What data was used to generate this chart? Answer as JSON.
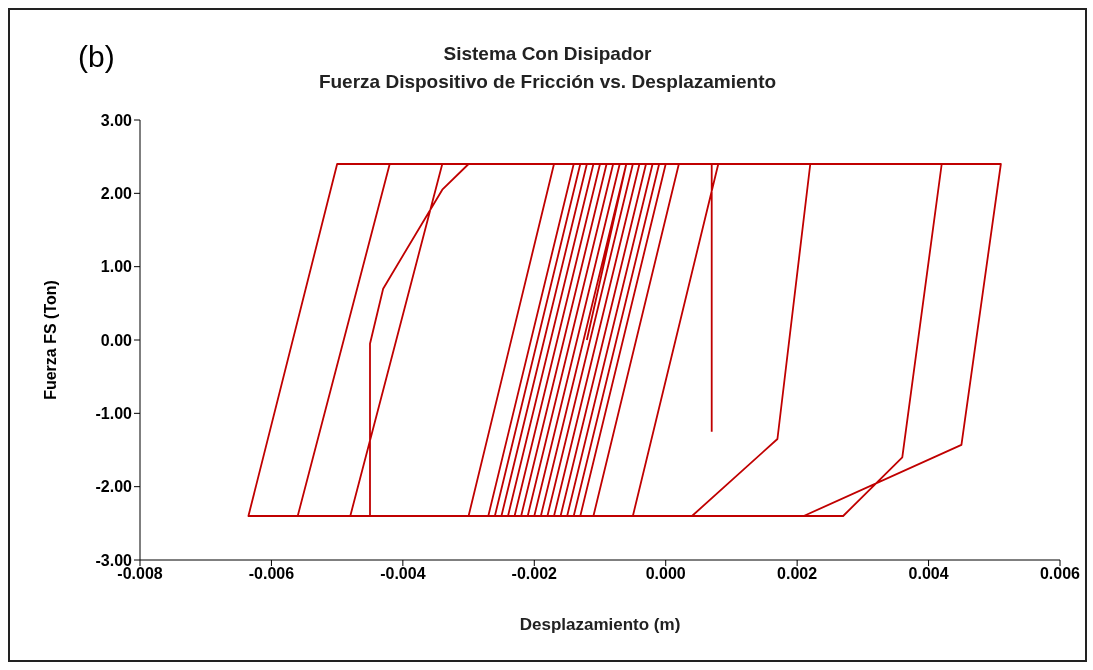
{
  "chart_data": {
    "type": "line",
    "title": "Sistema Con Disipador",
    "subtitle": "Fuerza Dispositivo de Fricción vs. Desplazamiento",
    "xlabel": "Desplazamiento (m)",
    "ylabel": "Fuerza FS (Ton)",
    "annotations": [
      "(b)"
    ],
    "xlim": [
      -0.008,
      0.006
    ],
    "xticks": [
      {
        "value": -0.008,
        "label": "-0.008"
      },
      {
        "value": -0.006,
        "label": "-0.006"
      },
      {
        "value": -0.004,
        "label": "-0.004"
      },
      {
        "value": -0.002,
        "label": "-0.002"
      },
      {
        "value": 0,
        "label": "0.000"
      },
      {
        "value": 0.002,
        "label": "0.002"
      },
      {
        "value": 0.004,
        "label": "0.004"
      },
      {
        "value": 0.006,
        "label": "0.006"
      }
    ],
    "ylim": [
      -3,
      3
    ],
    "yticks": [
      {
        "value": -3,
        "label": "-3.00"
      },
      {
        "value": -2,
        "label": "-2.00"
      },
      {
        "value": -1,
        "label": "-1.00"
      },
      {
        "value": 0,
        "label": "0.00"
      },
      {
        "value": 1,
        "label": "1.00"
      },
      {
        "value": 2,
        "label": "2.00"
      },
      {
        "value": 3,
        "label": "3.00"
      }
    ],
    "grid": false,
    "legend": false,
    "marker": "none",
    "line_style": "solid",
    "series": [
      {
        "color": "#c00000",
        "x": [
          -0.0012,
          -0.0006,
          0.0051,
          0.0045,
          0.0021,
          -0.00635,
          -0.005,
          0.0042,
          0.0036,
          0.0027,
          -0.0056,
          -0.0042,
          0.0022,
          0.0017,
          0.0004,
          -0.0048,
          -0.0034,
          0.0008,
          -0.0005,
          -0.0045,
          -0.0045,
          -0.0043,
          -0.0034,
          -0.003,
          -0.0008,
          -0.0021,
          -0.003,
          -0.0017,
          -0.0004,
          -0.0017,
          -0.0025,
          -0.0012,
          -0.0002,
          -0.0015,
          -0.0023,
          -0.001,
          -0.0005,
          -0.0018,
          -0.0022,
          -0.0009,
          -0.0003,
          -0.0016,
          -0.0021,
          -0.0008,
          -0.0006,
          -0.0019,
          -0.0024,
          -0.0011,
          -0.0004,
          -0.0017,
          -0.002,
          -0.0007,
          0.0002,
          -0.0011,
          -0.0019,
          -0.0006,
          -0.0001,
          -0.0014,
          -0.0018,
          -0.0005,
          0,
          -0.0013,
          -0.0027,
          -0.0014,
          -0.0009,
          -0.0022,
          -0.0026,
          -0.0013,
          -0.0007,
          -0.002,
          -0.0021,
          -0.0008,
          0.0007,
          0.0007
        ],
        "values": [
          0,
          2.4,
          2.4,
          -1.43,
          -2.4,
          -2.4,
          2.4,
          2.4,
          -1.6,
          -2.4,
          -2.4,
          2.4,
          2.4,
          -1.35,
          -2.4,
          -2.4,
          2.4,
          2.4,
          -2.4,
          -2.4,
          -0.05,
          0.7,
          2.05,
          2.4,
          2.4,
          -2.4,
          -2.4,
          2.4,
          2.4,
          -2.4,
          -2.4,
          2.4,
          2.4,
          -2.4,
          -2.4,
          2.4,
          2.4,
          -2.4,
          -2.4,
          2.4,
          2.4,
          -2.4,
          -2.4,
          2.4,
          2.4,
          -2.4,
          -2.4,
          2.4,
          2.4,
          -2.4,
          -2.4,
          2.4,
          2.4,
          -2.4,
          -2.4,
          2.4,
          2.4,
          -2.4,
          -2.4,
          2.4,
          2.4,
          -2.4,
          -2.4,
          2.4,
          2.4,
          -2.4,
          -2.4,
          2.4,
          2.4,
          -2.4,
          -2.4,
          2.4,
          2.4,
          -1.25
        ]
      }
    ]
  }
}
